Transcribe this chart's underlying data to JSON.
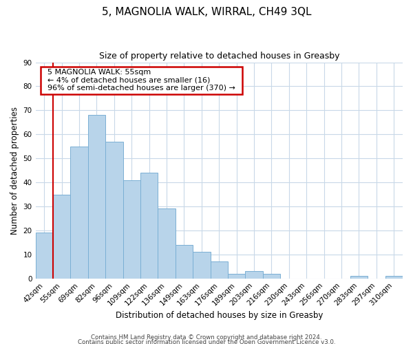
{
  "title": "5, MAGNOLIA WALK, WIRRAL, CH49 3QL",
  "subtitle": "Size of property relative to detached houses in Greasby",
  "xlabel": "Distribution of detached houses by size in Greasby",
  "ylabel": "Number of detached properties",
  "bin_labels": [
    "42sqm",
    "55sqm",
    "69sqm",
    "82sqm",
    "96sqm",
    "109sqm",
    "122sqm",
    "136sqm",
    "149sqm",
    "163sqm",
    "176sqm",
    "189sqm",
    "203sqm",
    "216sqm",
    "230sqm",
    "243sqm",
    "256sqm",
    "270sqm",
    "283sqm",
    "297sqm",
    "310sqm"
  ],
  "bar_values": [
    19,
    35,
    55,
    68,
    57,
    41,
    44,
    29,
    14,
    11,
    7,
    2,
    3,
    2,
    0,
    0,
    0,
    0,
    1,
    0,
    1
  ],
  "bar_color": "#b8d4ea",
  "bar_edge_color": "#7aafd4",
  "vline_x": 1,
  "vline_color": "#cc0000",
  "ylim": [
    0,
    90
  ],
  "yticks": [
    0,
    10,
    20,
    30,
    40,
    50,
    60,
    70,
    80,
    90
  ],
  "annotation_title": "5 MAGNOLIA WALK: 55sqm",
  "annotation_line1": "← 4% of detached houses are smaller (16)",
  "annotation_line2": "96% of semi-detached houses are larger (370) →",
  "annotation_box_color": "#ffffff",
  "annotation_box_edge": "#cc0000",
  "footer_line1": "Contains HM Land Registry data © Crown copyright and database right 2024.",
  "footer_line2": "Contains public sector information licensed under the Open Government Licence v3.0.",
  "background_color": "#ffffff",
  "grid_color": "#c8d8e8"
}
